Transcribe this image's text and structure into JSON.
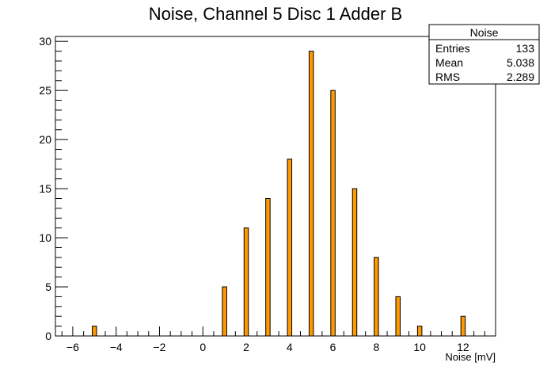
{
  "chart_data": {
    "type": "bar",
    "title": "Noise, Channel 5 Disc 1 Adder B",
    "xlabel": "Noise [mV]",
    "ylabel": "",
    "xlim": [
      -6.8,
      13.5
    ],
    "ylim": [
      0,
      30.5
    ],
    "x_ticks": [
      -6,
      -4,
      -2,
      0,
      2,
      4,
      6,
      8,
      10,
      12
    ],
    "y_ticks": [
      0,
      5,
      10,
      15,
      20,
      25,
      30
    ],
    "bin_width": 0.2,
    "bars": [
      {
        "x": -5,
        "value": 1
      },
      {
        "x": 1,
        "value": 5
      },
      {
        "x": 2,
        "value": 11
      },
      {
        "x": 3,
        "value": 14
      },
      {
        "x": 4,
        "value": 18
      },
      {
        "x": 5,
        "value": 29
      },
      {
        "x": 6,
        "value": 25
      },
      {
        "x": 7,
        "value": 15
      },
      {
        "x": 8,
        "value": 8
      },
      {
        "x": 9,
        "value": 4
      },
      {
        "x": 10,
        "value": 1
      },
      {
        "x": 12,
        "value": 2
      }
    ],
    "bar_color": "#ff9900",
    "grid": false,
    "legend": "top-right"
  },
  "stats": {
    "title": "Noise",
    "rows": [
      {
        "label": "Entries",
        "value": "133"
      },
      {
        "label": "Mean",
        "value": "5.038"
      },
      {
        "label": "RMS",
        "value": "2.289"
      }
    ]
  }
}
